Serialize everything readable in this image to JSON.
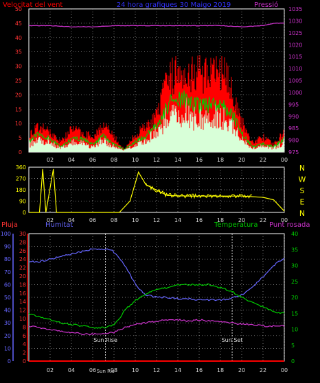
{
  "header": {
    "left_title": "Velocitat del vent",
    "center_title": "24 hora grafiques  30 Maigo 2019",
    "right_title": "Pressió"
  },
  "colors": {
    "wind_gust": "#ff0000",
    "wind_avg": "#00cc00",
    "wind_low": "#d8ffd8",
    "pressure": "#cc33cc",
    "direction": "#ffff00",
    "humidity": "#6666ff",
    "temperature": "#00cc00",
    "dewpoint": "#cc33cc",
    "rain": "#ff0000",
    "frame": "#ffffff",
    "grid": "#aaaaaa"
  },
  "x_ticks": [
    "02",
    "04",
    "06",
    "08",
    "10",
    "12",
    "14",
    "16",
    "18",
    "20",
    "22",
    "00"
  ],
  "chart_data": [
    {
      "type": "area",
      "name": "wind-pressure",
      "y_left": {
        "label": "Velocitat del vent",
        "range": [
          0,
          50
        ],
        "ticks": [
          "0",
          "5",
          "10",
          "15",
          "20",
          "25",
          "30",
          "35",
          "40",
          "45",
          "50"
        ]
      },
      "y_right": {
        "label": "Pressió",
        "range": [
          975,
          1035
        ],
        "ticks": [
          "975",
          "980",
          "985",
          "990",
          "995",
          "1000",
          "1005",
          "1010",
          "1015",
          "1020",
          "1025",
          "1030",
          "1035"
        ]
      },
      "series": [
        {
          "name": "gust",
          "x": [
            0,
            1,
            2,
            3,
            4,
            5,
            6,
            7,
            8,
            9,
            10,
            11,
            12,
            13,
            14,
            15,
            16,
            17,
            18,
            19,
            20,
            21,
            22,
            23,
            24
          ],
          "y": [
            7,
            10,
            8,
            4,
            9,
            8,
            6,
            11,
            6,
            1,
            7,
            10,
            14,
            28,
            33,
            32,
            32,
            30,
            33,
            26,
            12,
            4,
            6,
            3,
            8
          ]
        },
        {
          "name": "average",
          "x": [
            0,
            1,
            2,
            3,
            4,
            5,
            6,
            7,
            8,
            9,
            10,
            11,
            12,
            13,
            14,
            15,
            16,
            17,
            18,
            19,
            20,
            21,
            22,
            23,
            24
          ],
          "y": [
            4,
            7,
            5,
            2,
            5,
            5,
            3,
            6,
            3,
            1,
            4,
            6,
            10,
            17,
            21,
            19,
            18,
            18,
            19,
            15,
            7,
            2,
            3,
            2,
            5
          ]
        },
        {
          "name": "pressure",
          "x": [
            0,
            2,
            4,
            6,
            8,
            10,
            12,
            14,
            16,
            18,
            20,
            22,
            23,
            24
          ],
          "y": [
            1028,
            1028,
            1027.5,
            1027.5,
            1028,
            1028,
            1028,
            1028,
            1028,
            1028,
            1027.5,
            1028,
            1029,
            1029
          ]
        }
      ]
    },
    {
      "type": "line",
      "name": "wind-direction",
      "y_left": {
        "range": [
          0,
          360
        ],
        "ticks": [
          "0",
          "90",
          "180",
          "270",
          "360"
        ]
      },
      "y_right": {
        "ticks": [
          "N",
          "W",
          "S",
          "E",
          "N"
        ]
      },
      "series": [
        {
          "name": "direction",
          "x": [
            0,
            1,
            1.3,
            1.6,
            2.3,
            2.6,
            3.4,
            4,
            6.4,
            7.5,
            8.5,
            9.5,
            10.3,
            11,
            13,
            15,
            17,
            19,
            20,
            21,
            22,
            23,
            24
          ],
          "y": [
            0,
            0,
            345,
            0,
            345,
            0,
            0,
            0,
            0,
            0,
            0,
            90,
            320,
            220,
            135,
            130,
            130,
            130,
            130,
            125,
            120,
            100,
            10
          ]
        }
      ]
    },
    {
      "type": "line",
      "name": "temperature-humidity",
      "y_humidity": {
        "label": "Humitat",
        "range": [
          0,
          100
        ],
        "ticks": [
          "0",
          "10",
          "20",
          "30",
          "40",
          "50",
          "60",
          "70",
          "80",
          "90",
          "100"
        ]
      },
      "y_rain": {
        "label": "Pluja",
        "range": [
          0,
          30
        ],
        "ticks": [
          "0",
          "2",
          "4",
          "6",
          "8",
          "10",
          "12",
          "14",
          "16",
          "18",
          "20",
          "22",
          "24",
          "26",
          "28",
          "30"
        ]
      },
      "y_temp": {
        "label": "Temperatura",
        "range": [
          0,
          40
        ],
        "ticks": [
          "0",
          "5",
          "10",
          "15",
          "20",
          "25",
          "30",
          "35",
          "40"
        ]
      },
      "y_dew_label": "Punt rosada",
      "annotations": [
        {
          "label": "Sun Rise",
          "x": 7.2
        },
        {
          "label": "Sun Set",
          "x": 19.1
        }
      ],
      "x_extra_label": "Sun Ris",
      "series": [
        {
          "name": "humidity",
          "x": [
            0,
            1,
            2,
            3,
            4,
            5,
            6,
            7,
            7.8,
            8.3,
            9,
            9.7,
            10.3,
            11,
            12,
            13,
            14,
            15,
            16,
            17,
            18,
            19,
            20,
            21,
            22,
            23,
            23.5,
            24
          ],
          "y": [
            78,
            78,
            80,
            82,
            84,
            86,
            88,
            88,
            87,
            83,
            75,
            65,
            57,
            52,
            50,
            50,
            49,
            49,
            48,
            48,
            48,
            49,
            52,
            58,
            66,
            75,
            78,
            80
          ]
        },
        {
          "name": "temperature",
          "x": [
            0,
            1,
            2,
            3,
            4,
            5,
            6,
            7,
            7.8,
            8.5,
            9,
            10,
            11,
            12,
            13,
            14,
            15,
            16,
            17,
            18,
            19,
            20,
            21,
            22,
            23,
            24
          ],
          "y": [
            15,
            14,
            13,
            12,
            11.5,
            11,
            10.5,
            10.5,
            11,
            13,
            16,
            19,
            21,
            22.5,
            23,
            24,
            24,
            24,
            24,
            23,
            22,
            20,
            18.5,
            17,
            15.5,
            15
          ]
        },
        {
          "name": "dewpoint",
          "x": [
            0,
            1,
            2,
            3,
            4,
            5,
            6,
            7,
            8,
            9,
            10,
            11,
            12,
            13,
            14,
            15,
            16,
            17,
            18,
            19,
            20,
            21,
            22,
            23,
            24
          ],
          "y": [
            11,
            10.5,
            10,
            9.5,
            9,
            8.5,
            8.5,
            8.5,
            9,
            10.5,
            11.5,
            12,
            12.5,
            13,
            13,
            12.5,
            13,
            12.5,
            12.5,
            12,
            11.5,
            11.5,
            11,
            11,
            11
          ]
        },
        {
          "name": "rain",
          "x": [
            0,
            24
          ],
          "y": [
            0,
            0
          ]
        }
      ]
    }
  ],
  "panel2_labels": {
    "left": [
      "360",
      "270",
      "180",
      "90",
      "0"
    ],
    "right": [
      "N",
      "W",
      "S",
      "E",
      "N"
    ]
  }
}
